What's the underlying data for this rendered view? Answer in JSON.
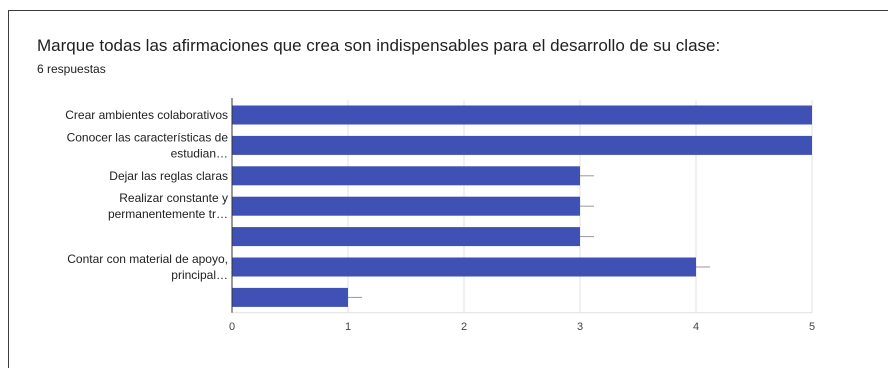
{
  "question": {
    "title": "Marque todas las afirmaciones que crea son indispensables para el desarrollo de su clase:",
    "responses": "6 respuestas"
  },
  "chart_data": {
    "type": "bar",
    "orientation": "horizontal",
    "categories": [
      [
        "Crear ambientes colaborativos"
      ],
      [
        "Conocer las características de",
        "estudian…"
      ],
      [
        "Dejar las reglas claras"
      ],
      [
        "Realizar constante y",
        "permanentemente tr…"
      ],
      [
        ""
      ],
      [
        "Contar con material de apoyo,",
        "principal…"
      ],
      [
        ""
      ]
    ],
    "values": [
      5,
      5,
      3,
      3,
      3,
      4,
      1
    ],
    "xlim": [
      0,
      5
    ],
    "xticks": [
      0,
      1,
      2,
      3,
      4,
      5
    ],
    "grid": true,
    "bar_color": "#3f51b5"
  }
}
